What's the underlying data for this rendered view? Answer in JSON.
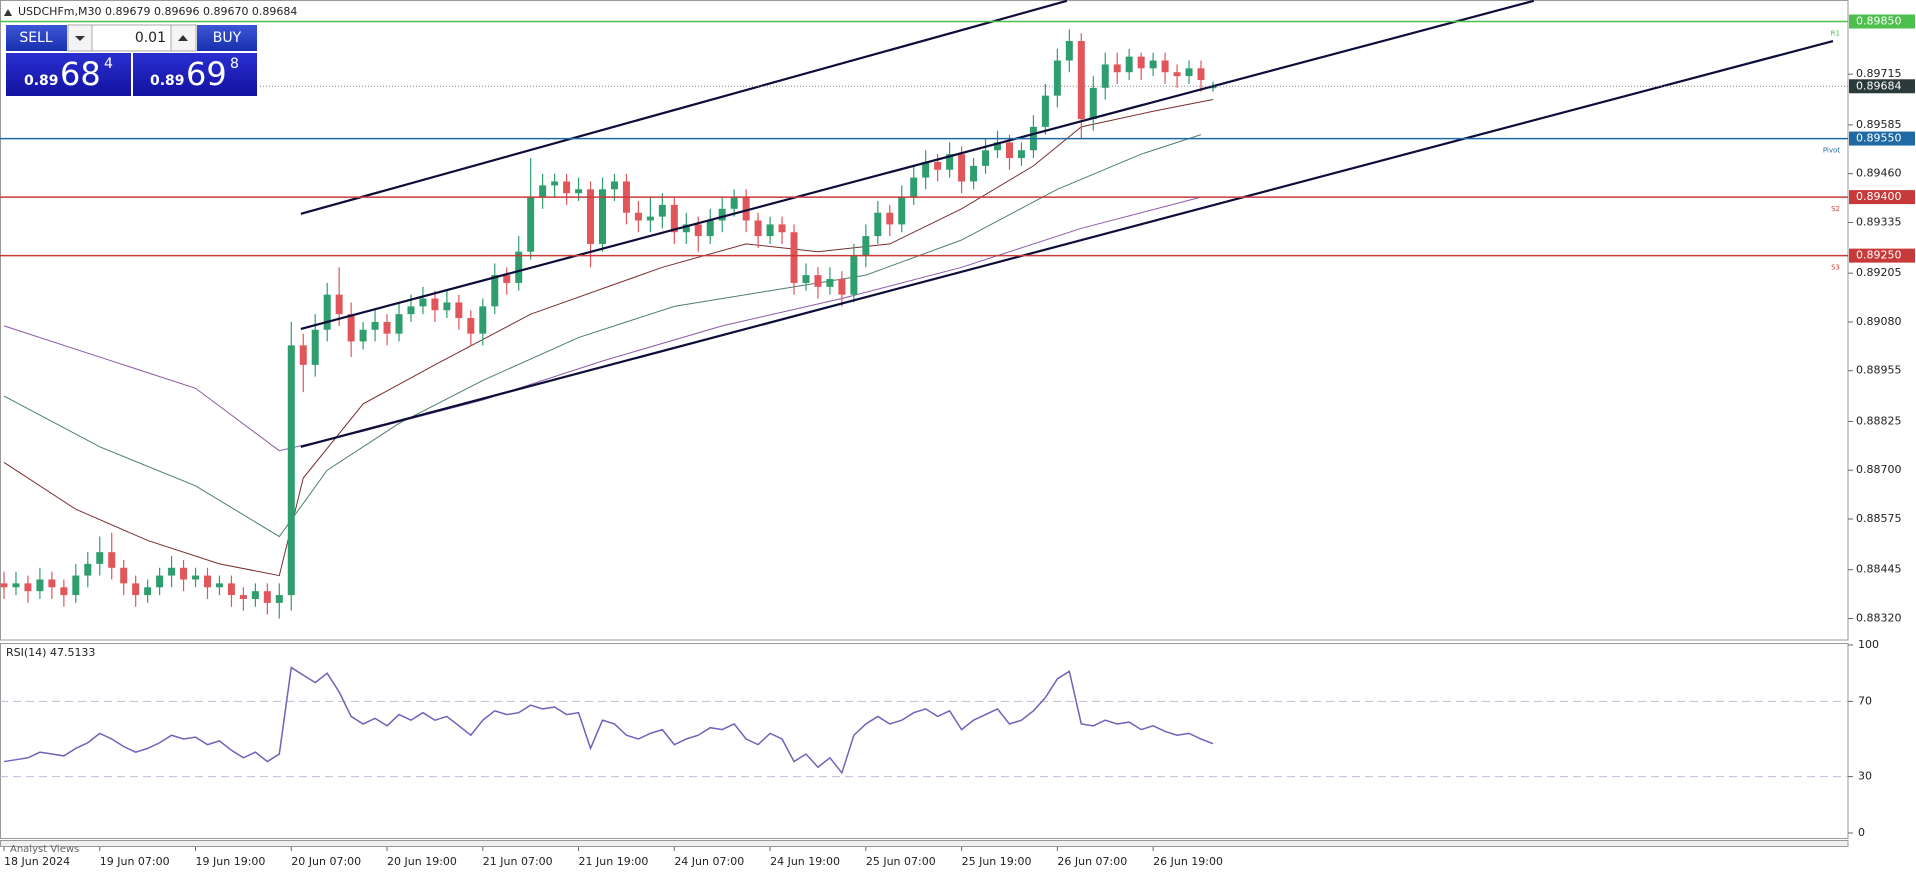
{
  "header": "USDCHFm,M30  0.89679 0.89696 0.89670 0.89684",
  "trade_panel": {
    "sell": "SELL",
    "lot": "0.01",
    "buy": "BUY",
    "bid": {
      "prefix": "0.89",
      "main": "68",
      "small": "4"
    },
    "ask": {
      "prefix": "0.89",
      "main": "69",
      "small": "8"
    }
  },
  "footer": "Analyst Views",
  "chart_data": [
    {
      "type": "candlestick",
      "up_color": "#2e9e6e",
      "down_color": "#e0565b",
      "categories": [
        "18 Jun 2024",
        null,
        null,
        null,
        null,
        null,
        null,
        null,
        "19 Jun 07:00",
        null,
        null,
        null,
        null,
        null,
        null,
        null,
        "19 Jun 19:00",
        null,
        null,
        null,
        null,
        null,
        null,
        null,
        "20 Jun 07:00",
        null,
        null,
        null,
        null,
        null,
        null,
        null,
        "20 Jun 19:00",
        null,
        null,
        null,
        null,
        null,
        null,
        null,
        "21 Jun 07:00",
        null,
        null,
        null,
        null,
        null,
        null,
        null,
        "21 Jun 19:00",
        null,
        null,
        null,
        null,
        null,
        null,
        null,
        "24 Jun 07:00",
        null,
        null,
        null,
        null,
        null,
        null,
        null,
        "24 Jun 19:00",
        null,
        null,
        null,
        null,
        null,
        null,
        null,
        "25 Jun 07:00",
        null,
        null,
        null,
        null,
        null,
        null,
        null,
        "25 Jun 19:00",
        null,
        null,
        null,
        null,
        null,
        null,
        null,
        "26 Jun 07:00",
        null,
        null,
        null,
        null,
        null,
        null,
        null,
        "26 Jun 19:00",
        null,
        null,
        null,
        null,
        null
      ],
      "open": [
        0.8841,
        0.884,
        0.8841,
        0.8839,
        0.8842,
        0.884,
        0.8838,
        0.8843,
        0.8846,
        0.8849,
        0.8845,
        0.8841,
        0.8838,
        0.884,
        0.8843,
        0.8845,
        0.8842,
        0.8843,
        0.884,
        0.8841,
        0.8838,
        0.8837,
        0.8839,
        0.8836,
        0.8838,
        0.8902,
        0.8897,
        0.8906,
        0.8915,
        0.891,
        0.8903,
        0.8906,
        0.8908,
        0.8905,
        0.891,
        0.8912,
        0.8914,
        0.8911,
        0.8913,
        0.8909,
        0.8905,
        0.8912,
        0.892,
        0.8918,
        0.8926,
        0.894,
        0.8943,
        0.8944,
        0.8941,
        0.8942,
        0.8928,
        0.8942,
        0.8944,
        0.8936,
        0.8934,
        0.8935,
        0.8938,
        0.8931,
        0.8933,
        0.893,
        0.8934,
        0.8937,
        0.894,
        0.8934,
        0.893,
        0.8933,
        0.8931,
        0.8918,
        0.892,
        0.8917,
        0.8919,
        0.8915,
        0.8925,
        0.893,
        0.8936,
        0.8933,
        0.894,
        0.8945,
        0.8949,
        0.8947,
        0.8951,
        0.8944,
        0.8948,
        0.8952,
        0.8954,
        0.895,
        0.8952,
        0.8958,
        0.8966,
        0.8975,
        0.898,
        0.896,
        0.8968,
        0.8974,
        0.8972,
        0.8976,
        0.8973,
        0.8975,
        0.8972,
        0.8971,
        0.8973,
        0.89679
      ],
      "high": [
        0.8844,
        0.8844,
        0.8843,
        0.8845,
        0.8844,
        0.8842,
        0.8846,
        0.8849,
        0.8853,
        0.8854,
        0.8847,
        0.8843,
        0.8842,
        0.8845,
        0.8848,
        0.8847,
        0.8845,
        0.8845,
        0.8843,
        0.8843,
        0.884,
        0.8841,
        0.8841,
        0.8841,
        0.8908,
        0.8905,
        0.891,
        0.8918,
        0.8922,
        0.8913,
        0.8908,
        0.8911,
        0.891,
        0.8913,
        0.8915,
        0.8917,
        0.8916,
        0.8916,
        0.8915,
        0.8911,
        0.8914,
        0.8923,
        0.8922,
        0.893,
        0.895,
        0.8946,
        0.8946,
        0.8946,
        0.8945,
        0.8944,
        0.8945,
        0.8946,
        0.8946,
        0.8939,
        0.894,
        0.8941,
        0.894,
        0.8936,
        0.8935,
        0.8937,
        0.894,
        0.8942,
        0.8942,
        0.8936,
        0.8935,
        0.8935,
        0.8933,
        0.8923,
        0.8922,
        0.8922,
        0.8921,
        0.8928,
        0.8933,
        0.8939,
        0.8938,
        0.8943,
        0.8948,
        0.8952,
        0.8951,
        0.8954,
        0.8953,
        0.895,
        0.8955,
        0.8957,
        0.8956,
        0.8954,
        0.8961,
        0.8969,
        0.8978,
        0.8983,
        0.8982,
        0.8971,
        0.8977,
        0.8977,
        0.8978,
        0.8977,
        0.8977,
        0.8977,
        0.8974,
        0.8975,
        0.8975,
        0.89696
      ],
      "low": [
        0.8837,
        0.8838,
        0.8836,
        0.8837,
        0.8837,
        0.8835,
        0.8836,
        0.884,
        0.8843,
        0.8842,
        0.8838,
        0.8835,
        0.8836,
        0.8838,
        0.884,
        0.8839,
        0.884,
        0.8837,
        0.8838,
        0.8835,
        0.8834,
        0.8835,
        0.8833,
        0.8832,
        0.8834,
        0.889,
        0.8894,
        0.8903,
        0.8907,
        0.8899,
        0.8901,
        0.8903,
        0.8902,
        0.8903,
        0.8908,
        0.891,
        0.8908,
        0.8909,
        0.8906,
        0.8902,
        0.8902,
        0.891,
        0.8915,
        0.8916,
        0.8924,
        0.8937,
        0.894,
        0.8938,
        0.8939,
        0.8922,
        0.8926,
        0.8939,
        0.8933,
        0.8931,
        0.8931,
        0.8932,
        0.8928,
        0.8928,
        0.8926,
        0.8928,
        0.8931,
        0.8935,
        0.8931,
        0.8927,
        0.8928,
        0.8928,
        0.8915,
        0.8916,
        0.8914,
        0.8915,
        0.8912,
        0.8913,
        0.8922,
        0.8928,
        0.893,
        0.8931,
        0.8938,
        0.8942,
        0.8944,
        0.8945,
        0.8941,
        0.8942,
        0.8946,
        0.895,
        0.8947,
        0.8948,
        0.895,
        0.8956,
        0.8963,
        0.8972,
        0.8955,
        0.8957,
        0.8965,
        0.8969,
        0.897,
        0.897,
        0.8971,
        0.8969,
        0.8968,
        0.8969,
        0.8967,
        0.8967
      ],
      "close": [
        0.884,
        0.8841,
        0.8839,
        0.8842,
        0.884,
        0.8838,
        0.8843,
        0.8846,
        0.8849,
        0.8845,
        0.8841,
        0.8838,
        0.884,
        0.8843,
        0.8845,
        0.8842,
        0.8843,
        0.884,
        0.8841,
        0.8838,
        0.8837,
        0.8839,
        0.8836,
        0.8838,
        0.8902,
        0.8897,
        0.8906,
        0.8915,
        0.891,
        0.8903,
        0.8906,
        0.8908,
        0.8905,
        0.891,
        0.8912,
        0.8914,
        0.8911,
        0.8913,
        0.8909,
        0.8905,
        0.8912,
        0.892,
        0.8918,
        0.8926,
        0.894,
        0.8943,
        0.8944,
        0.8941,
        0.8942,
        0.8928,
        0.8942,
        0.8944,
        0.8936,
        0.8934,
        0.8935,
        0.8938,
        0.8931,
        0.8933,
        0.893,
        0.8934,
        0.8937,
        0.894,
        0.8934,
        0.893,
        0.8933,
        0.8931,
        0.8918,
        0.892,
        0.8917,
        0.8919,
        0.8915,
        0.8925,
        0.893,
        0.8936,
        0.8933,
        0.894,
        0.8945,
        0.8949,
        0.8947,
        0.8951,
        0.8944,
        0.8948,
        0.8952,
        0.8954,
        0.895,
        0.8952,
        0.8958,
        0.8966,
        0.8975,
        0.898,
        0.896,
        0.8968,
        0.8974,
        0.8972,
        0.8976,
        0.8973,
        0.8975,
        0.8972,
        0.8971,
        0.8973,
        0.897,
        0.89684
      ],
      "ylim": [
        0.8827,
        0.899
      ],
      "yticks": [
        {
          "value": 0.8832,
          "label": "0.88320"
        },
        0.88445,
        0.88575,
        {
          "value": 0.887,
          "label": "0.88700"
        },
        0.88825,
        0.88955,
        {
          "value": 0.8908,
          "label": "0.89080"
        },
        0.89205,
        0.89335,
        {
          "value": 0.8946,
          "label": "0.89460"
        },
        0.89585,
        0.89715
      ],
      "last_price": 0.89684,
      "levels": {
        "names": [
          "R1",
          "Pivot",
          "S2",
          "S3"
        ],
        "values": [
          0.8985,
          0.8955,
          0.894,
          0.8925
        ],
        "value_labels": [
          "0.89850",
          "0.89550",
          "0.89400",
          "0.89250"
        ],
        "colors": [
          "#4cbf4c",
          "#1f6aa5",
          "#c83a3a",
          "#c83a3a"
        ]
      },
      "moving_averages": [
        {
          "color": "#7a2e2e",
          "x": [
            0,
            6,
            12,
            18,
            23,
            25,
            30,
            36,
            44,
            55,
            62,
            68,
            74,
            80,
            86,
            90,
            96,
            101
          ],
          "values": [
            0.8872,
            0.886,
            0.8852,
            0.8846,
            0.8843,
            0.8868,
            0.8887,
            0.8897,
            0.891,
            0.8922,
            0.8928,
            0.8926,
            0.8928,
            0.8937,
            0.8948,
            0.8958,
            0.8962,
            0.8965
          ]
        },
        {
          "color": "#4f7f6e",
          "x": [
            0,
            8,
            16,
            23,
            27,
            33,
            40,
            48,
            56,
            64,
            72,
            80,
            88,
            95,
            100
          ],
          "values": [
            0.8889,
            0.8876,
            0.8866,
            0.8853,
            0.887,
            0.8882,
            0.8893,
            0.8904,
            0.8912,
            0.8916,
            0.892,
            0.8929,
            0.8942,
            0.8951,
            0.8956
          ]
        },
        {
          "color": "#8a5aa8",
          "x": [
            0,
            8,
            16,
            23,
            30,
            40,
            50,
            60,
            70,
            80,
            90,
            100
          ],
          "values": [
            0.8907,
            0.8899,
            0.8891,
            0.8875,
            0.888,
            0.8888,
            0.8898,
            0.8907,
            0.8914,
            0.8922,
            0.8932,
            0.894
          ]
        }
      ],
      "trendlines": [
        {
          "color": "#0d0d3a",
          "x": [
            24.8,
            88.8
          ],
          "values": [
            0.89357,
            0.89903
          ]
        },
        {
          "color": "#0d0d3a",
          "x": [
            24.8,
            127.8
          ],
          "values": [
            0.89062,
            0.89903
          ]
        },
        {
          "color": "#0d0d3a",
          "x": [
            24.8,
            152.8
          ],
          "values": [
            0.8876,
            0.898
          ]
        }
      ]
    },
    {
      "type": "line",
      "title": "RSI(14) 47.5133",
      "color": "#6e63b8",
      "values": [
        38,
        39,
        40,
        43,
        42,
        41,
        45,
        48,
        53,
        50,
        46,
        43,
        45,
        48,
        52,
        50,
        51,
        47,
        49,
        44,
        40,
        43,
        38,
        42,
        88,
        84,
        80,
        85,
        75,
        62,
        58,
        61,
        57,
        63,
        60,
        64,
        60,
        62,
        57,
        52,
        60,
        65,
        63,
        64,
        68,
        66,
        67,
        63,
        64,
        45,
        60,
        58,
        52,
        50,
        53,
        55,
        47,
        50,
        52,
        56,
        55,
        58,
        50,
        47,
        53,
        50,
        38,
        42,
        35,
        40,
        32,
        52,
        58,
        62,
        58,
        60,
        64,
        66,
        62,
        65,
        55,
        60,
        63,
        66,
        58,
        60,
        65,
        72,
        82,
        86,
        58,
        57,
        60,
        58,
        59,
        55,
        57,
        54,
        52,
        53,
        50,
        47.5133
      ],
      "ylim": [
        0,
        100
      ],
      "yticks": [
        0,
        30,
        70,
        100
      ],
      "levels": [
        30,
        70
      ]
    }
  ]
}
